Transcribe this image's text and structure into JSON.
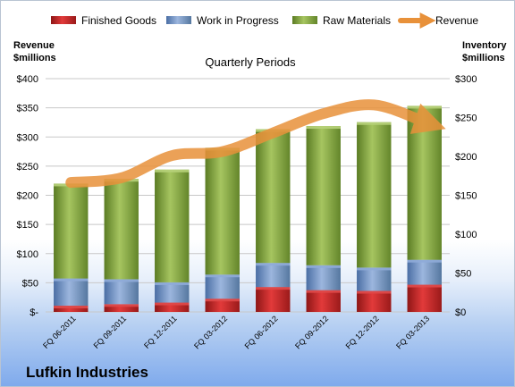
{
  "chart_data": {
    "type": "bar",
    "stacked": true,
    "title": "Quarterly Periods",
    "company": "Lufkin Industries",
    "ylabel_left": [
      "Revenue",
      "$millions"
    ],
    "ylabel_right": [
      "Inventory",
      "$millions"
    ],
    "categories": [
      "FQ 06-2011",
      "FQ 09-2011",
      "FQ 12-2011",
      "FQ 03-2012",
      "FQ 06-2012",
      "FQ 09-2012",
      "FQ 12-2012",
      "FQ 03-2013"
    ],
    "left_ticks": [
      "$-",
      "$50",
      "$100",
      "$150",
      "$200",
      "$250",
      "$300",
      "$350",
      "$400"
    ],
    "right_ticks": [
      "$0",
      "$50",
      "$100",
      "$150",
      "$200",
      "$250",
      "$300"
    ],
    "ylim_left": [
      0,
      400
    ],
    "ylim_right": [
      0,
      300
    ],
    "legend_position": "top",
    "series": [
      {
        "name": "Finished Goods",
        "axis": "right",
        "color": "#cc2b2b",
        "values": [
          8,
          10,
          12,
          17,
          32,
          28,
          27,
          35
        ]
      },
      {
        "name": "Work in Progress",
        "axis": "right",
        "color": "#6e92c6",
        "values": [
          35,
          32,
          26,
          31,
          31,
          32,
          30,
          32
        ]
      },
      {
        "name": "Raw Materials",
        "axis": "right",
        "color": "#83a540",
        "values": [
          122,
          129,
          145,
          163,
          172,
          179,
          187,
          198
        ]
      },
      {
        "name": "Revenue",
        "axis": "left",
        "type": "line",
        "color": "#e8913a",
        "values": [
          222,
          230,
          268,
          275,
          307,
          340,
          355,
          326
        ]
      }
    ]
  }
}
